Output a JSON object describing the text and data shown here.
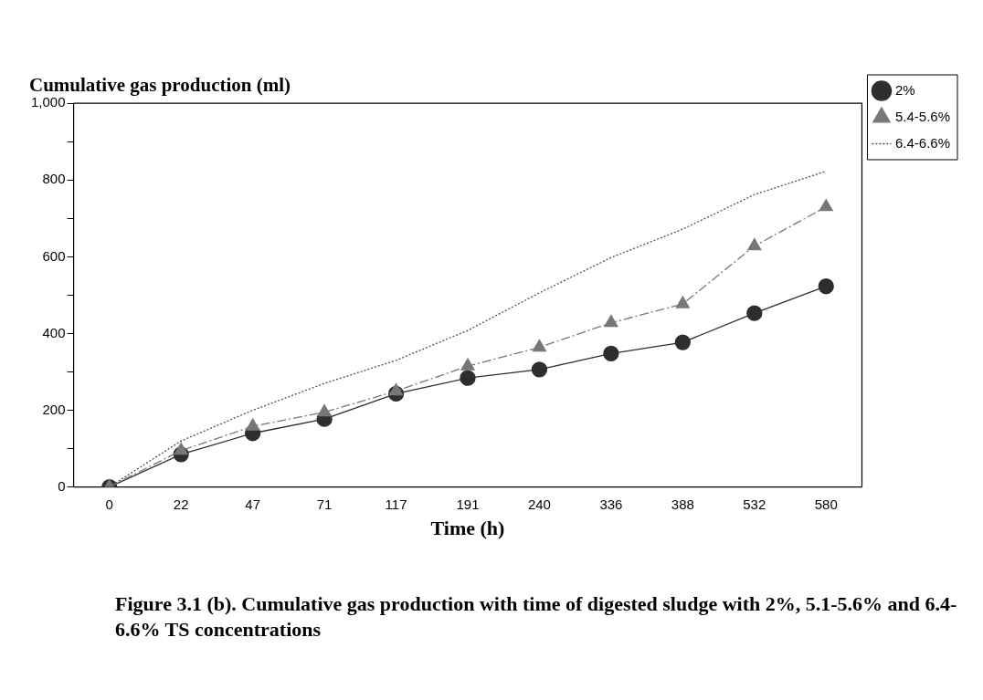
{
  "chart_data": {
    "type": "line",
    "title": "Cumulative gas production (ml)",
    "xlabel": "Time (h)",
    "categories": [
      "0",
      "22",
      "47",
      "71",
      "117",
      "191",
      "240",
      "336",
      "388",
      "532",
      "580"
    ],
    "series": [
      {
        "name": "2%",
        "color": "#2e2e2e",
        "marker": "circle",
        "line_style": "solid",
        "values": [
          0,
          85,
          140,
          177,
          243,
          284,
          306,
          348,
          377,
          453,
          523
        ]
      },
      {
        "name": "5.4-5.6%",
        "color": "#777777",
        "marker": "triangle",
        "line_style": "dashed",
        "values": [
          0,
          95,
          158,
          195,
          250,
          315,
          364,
          428,
          477,
          628,
          730
        ]
      },
      {
        "name": "6.4-6.6%",
        "color": "#505050",
        "marker": "none",
        "line_style": "dotted",
        "values": [
          0,
          120,
          200,
          270,
          330,
          408,
          506,
          598,
          672,
          762,
          823
        ]
      }
    ],
    "ylim": [
      0,
      1000
    ],
    "yticks": [
      0,
      {
        "value": 100,
        "label": null
      },
      200,
      {
        "value": 300,
        "label": null
      },
      400,
      {
        "value": 500,
        "label": null
      },
      600,
      {
        "value": 700,
        "label": null
      },
      800,
      {
        "value": 900,
        "label": null
      },
      {
        "value": 1000,
        "label": "1,000"
      }
    ],
    "grid": false,
    "legend": "top right",
    "annotations": [
      "Figure 3.1 (b). Cumulative gas production with time of digested sludge with 2%, 5.1-5.6% and 6.4-6.6% TS concentrations"
    ]
  }
}
